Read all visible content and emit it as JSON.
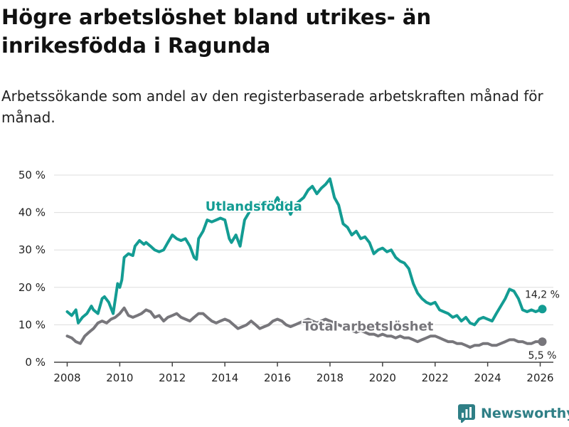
{
  "header": {
    "title": "Högre arbetslöshet bland utrikes- än inrikesfödda i Ragunda",
    "subtitle": "Arbetssökande som andel av den registerbaserade arbetskraften månad för månad."
  },
  "brand": {
    "name": "Newsworthy"
  },
  "colors": {
    "foreign_born": "#139c93",
    "total": "#77767b",
    "grid": "#dddddd",
    "axis": "#444444"
  },
  "chart_data": {
    "type": "line",
    "title": "Högre arbetslöshet bland utrikes- än inrikesfödda i Ragunda",
    "xlabel": "",
    "ylabel": "",
    "xlim": [
      2007.5,
      2026.5
    ],
    "ylim": [
      0,
      50
    ],
    "grid": true,
    "x_ticks": [
      2008,
      2010,
      2012,
      2014,
      2016,
      2018,
      2020,
      2022,
      2024,
      2026
    ],
    "x_tick_labels": [
      "2008",
      "2010",
      "2012",
      "2014",
      "2016",
      "2018",
      "2020",
      "2022",
      "2024",
      "2026"
    ],
    "y_ticks": [
      0,
      10,
      20,
      30,
      40,
      50
    ],
    "y_tick_labels": [
      "0 %",
      "10 %",
      "20 %",
      "30 %",
      "40 %",
      "50 %"
    ],
    "series": [
      {
        "name": "Utlandsfödda",
        "label": "Utlandsfödda",
        "end_label": "14,2 %",
        "x": [
          2008.0,
          2008.17,
          2008.33,
          2008.42,
          2008.58,
          2008.75,
          2008.92,
          2009.0,
          2009.17,
          2009.33,
          2009.42,
          2009.58,
          2009.75,
          2009.92,
          2010.0,
          2010.08,
          2010.17,
          2010.33,
          2010.5,
          2010.58,
          2010.75,
          2010.92,
          2011.0,
          2011.17,
          2011.33,
          2011.5,
          2011.67,
          2011.83,
          2012.0,
          2012.17,
          2012.33,
          2012.5,
          2012.67,
          2012.83,
          2012.92,
          2013.0,
          2013.17,
          2013.33,
          2013.5,
          2013.67,
          2013.83,
          2014.0,
          2014.17,
          2014.25,
          2014.42,
          2014.58,
          2014.75,
          2014.92,
          2015.0,
          2015.17,
          2015.33,
          2015.5,
          2015.67,
          2015.83,
          2016.0,
          2016.17,
          2016.33,
          2016.5,
          2016.67,
          2016.83,
          2017.0,
          2017.17,
          2017.33,
          2017.5,
          2017.67,
          2017.83,
          2018.0,
          2018.17,
          2018.33,
          2018.5,
          2018.67,
          2018.83,
          2019.0,
          2019.17,
          2019.33,
          2019.5,
          2019.67,
          2019.83,
          2020.0,
          2020.17,
          2020.33,
          2020.5,
          2020.67,
          2020.83,
          2021.0,
          2021.17,
          2021.33,
          2021.5,
          2021.67,
          2021.83,
          2022.0,
          2022.17,
          2022.33,
          2022.5,
          2022.67,
          2022.83,
          2023.0,
          2023.17,
          2023.33,
          2023.5,
          2023.67,
          2023.83,
          2024.0,
          2024.17,
          2024.33,
          2024.5,
          2024.67,
          2024.83,
          2025.0,
          2025.17,
          2025.33,
          2025.5,
          2025.67,
          2025.83,
          2026.0,
          2026.08
        ],
        "values": [
          13.5,
          12.5,
          14,
          10.5,
          12,
          13,
          15,
          14,
          13,
          17,
          17.5,
          16,
          13,
          21,
          20,
          22,
          28,
          29,
          28.5,
          31,
          32.5,
          31.5,
          32,
          31,
          30,
          29.5,
          30,
          32,
          34,
          33,
          32.5,
          33,
          31,
          28,
          27.5,
          33,
          35,
          38,
          37.5,
          38,
          38.5,
          38,
          33,
          32,
          34,
          31,
          38,
          40,
          41.5,
          42,
          42.5,
          41.5,
          43,
          42,
          44,
          42,
          42.5,
          39.5,
          42,
          43,
          44,
          46,
          47,
          45,
          46.5,
          47.5,
          49,
          44,
          42,
          37,
          36,
          34,
          35,
          33,
          33.5,
          32,
          29,
          30,
          30.5,
          29.5,
          30,
          28,
          27,
          26.5,
          25,
          21,
          18.5,
          17,
          16,
          15.5,
          16,
          14,
          13.5,
          13,
          12,
          12.5,
          11,
          12,
          10.5,
          10,
          11.5,
          12,
          11.5,
          11,
          13,
          15,
          17,
          19.5,
          19,
          17,
          14,
          13.5,
          14,
          13.5,
          14,
          14.2
        ]
      },
      {
        "name": "Total arbetslöshet",
        "label": "Total arbetslöshet",
        "end_label": "5,5 %",
        "x": [
          2008.0,
          2008.17,
          2008.33,
          2008.5,
          2008.67,
          2008.83,
          2009.0,
          2009.17,
          2009.33,
          2009.5,
          2009.67,
          2009.83,
          2010.0,
          2010.17,
          2010.33,
          2010.5,
          2010.67,
          2010.83,
          2011.0,
          2011.17,
          2011.33,
          2011.5,
          2011.67,
          2011.83,
          2012.0,
          2012.17,
          2012.33,
          2012.5,
          2012.67,
          2012.83,
          2013.0,
          2013.17,
          2013.33,
          2013.5,
          2013.67,
          2013.83,
          2014.0,
          2014.17,
          2014.33,
          2014.5,
          2014.67,
          2014.83,
          2015.0,
          2015.17,
          2015.33,
          2015.5,
          2015.67,
          2015.83,
          2016.0,
          2016.17,
          2016.33,
          2016.5,
          2016.67,
          2016.83,
          2017.0,
          2017.17,
          2017.33,
          2017.5,
          2017.67,
          2017.83,
          2018.0,
          2018.17,
          2018.33,
          2018.5,
          2018.67,
          2018.83,
          2019.0,
          2019.17,
          2019.33,
          2019.5,
          2019.67,
          2019.83,
          2020.0,
          2020.17,
          2020.33,
          2020.5,
          2020.67,
          2020.83,
          2021.0,
          2021.17,
          2021.33,
          2021.5,
          2021.67,
          2021.83,
          2022.0,
          2022.17,
          2022.33,
          2022.5,
          2022.67,
          2022.83,
          2023.0,
          2023.17,
          2023.33,
          2023.5,
          2023.67,
          2023.83,
          2024.0,
          2024.17,
          2024.33,
          2024.5,
          2024.67,
          2024.83,
          2025.0,
          2025.17,
          2025.33,
          2025.5,
          2025.67,
          2025.83,
          2026.0,
          2026.08
        ],
        "values": [
          7,
          6.5,
          5.5,
          5,
          7,
          8,
          9,
          10.5,
          11,
          10.5,
          11.5,
          12,
          13,
          14.5,
          12.5,
          12,
          12.5,
          13,
          14,
          13.5,
          12,
          12.5,
          11,
          12,
          12.5,
          13,
          12,
          11.5,
          11,
          12,
          13,
          13,
          12,
          11,
          10.5,
          11,
          11.5,
          11,
          10,
          9,
          9.5,
          10,
          11,
          10,
          9,
          9.5,
          10,
          11,
          11.5,
          11,
          10,
          9.5,
          10,
          10.5,
          11,
          11.5,
          11,
          10.5,
          11,
          11.5,
          11,
          10.5,
          10,
          9.5,
          9,
          8.5,
          8,
          8.5,
          8,
          7.5,
          7.5,
          7,
          7.5,
          7,
          7,
          6.5,
          7,
          6.5,
          6.5,
          6,
          5.5,
          6,
          6.5,
          7,
          7,
          6.5,
          6,
          5.5,
          5.5,
          5,
          5,
          4.5,
          4,
          4.5,
          4.5,
          5,
          5,
          4.5,
          4.5,
          5,
          5.5,
          6,
          6,
          5.5,
          5.5,
          5,
          5,
          5.5,
          5.5,
          5.5
        ]
      }
    ]
  }
}
